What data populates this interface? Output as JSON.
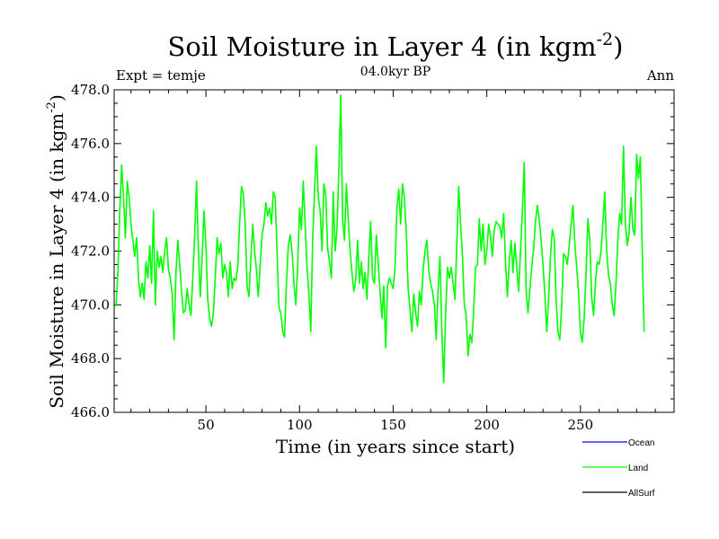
{
  "chart_data": {
    "type": "line",
    "title": "Soil Moisture in Layer 4 (in kgm",
    "title_sup": "-2",
    "title_close": ")",
    "subtitle": "04.0kyr BP",
    "left_label": "Expt = temje",
    "right_label": "Ann",
    "xlabel": "Time (in years since start)",
    "ylabel": "Soil Moisture in Layer 4 (in kgm",
    "ylabel_sup": "-2",
    "ylabel_close": ")",
    "xlim": [
      1,
      300
    ],
    "ylim": [
      466.0,
      478.0
    ],
    "xticks_major": [
      50,
      100,
      150,
      200,
      250
    ],
    "yticks_major": [
      466.0,
      468.0,
      470.0,
      472.0,
      474.0,
      476.0,
      478.0
    ],
    "ytick_labels": [
      "466.0",
      "468.0",
      "470.0",
      "472.0",
      "474.0",
      "476.0",
      "478.0"
    ],
    "legend": [
      {
        "name": "Ocean",
        "color": "#0000ff"
      },
      {
        "name": "Land",
        "color": "#00ff00"
      },
      {
        "name": "AllSurf",
        "color": "#000000"
      }
    ],
    "series": [
      {
        "name": "Land",
        "color": "#00ff00",
        "x_start": 1,
        "x_step": 1,
        "values": [
          469.9,
          470.0,
          471.2,
          473.5,
          475.2,
          474.0,
          472.5,
          474.6,
          474.0,
          473.0,
          472.4,
          471.8,
          472.5,
          471.0,
          470.3,
          470.8,
          470.2,
          471.6,
          471.0,
          472.2,
          470.8,
          473.5,
          470.0,
          472.0,
          471.4,
          471.8,
          471.2,
          472.0,
          472.5,
          471.3,
          471.0,
          470.4,
          468.7,
          471.2,
          472.4,
          471.5,
          470.5,
          469.7,
          469.8,
          470.6,
          470.0,
          469.6,
          471.0,
          472.6,
          474.6,
          472.0,
          470.3,
          471.8,
          473.5,
          472.2,
          470.2,
          469.5,
          469.2,
          469.7,
          471.0,
          472.5,
          471.9,
          472.3,
          471.0,
          471.5,
          471.2,
          470.3,
          471.6,
          470.6,
          471.0,
          470.9,
          471.4,
          473.0,
          474.4,
          474.1,
          473.0,
          470.7,
          470.3,
          471.7,
          473.0,
          472.0,
          471.3,
          470.3,
          471.5,
          472.6,
          473.0,
          473.8,
          473.3,
          473.6,
          473.0,
          474.2,
          474.0,
          472.0,
          469.9,
          469.7,
          469.0,
          468.8,
          470.8,
          472.2,
          472.6,
          472.0,
          470.8,
          470.0,
          471.4,
          473.6,
          472.8,
          474.6,
          473.0,
          471.4,
          470.4,
          469.0,
          472.4,
          474.2,
          475.9,
          474.0,
          473.5,
          472.0,
          474.5,
          474.1,
          472.1,
          471.6,
          471.0,
          474.2,
          472.0,
          472.8,
          475.0,
          477.8,
          473.2,
          472.4,
          474.5,
          473.2,
          472.0,
          471.2,
          470.5,
          470.9,
          472.4,
          470.8,
          471.6,
          470.6,
          471.2,
          470.2,
          471.8,
          473.1,
          471.0,
          470.8,
          472.6,
          471.6,
          470.5,
          469.5,
          470.7,
          468.4,
          470.7,
          471.0,
          470.8,
          470.6,
          471.4,
          473.6,
          474.3,
          473.0,
          474.5,
          474.0,
          472.7,
          470.6,
          469.8,
          469.0,
          470.4,
          469.7,
          469.2,
          470.5,
          470.0,
          471.3,
          472.0,
          472.4,
          471.3,
          470.8,
          470.5,
          470.0,
          468.7,
          470.6,
          471.8,
          469.0,
          467.1,
          469.6,
          471.4,
          471.0,
          471.4,
          470.8,
          470.2,
          472.3,
          474.4,
          473.0,
          471.8,
          470.0,
          469.6,
          468.1,
          468.9,
          468.6,
          469.8,
          471.4,
          471.5,
          473.2,
          472.0,
          473.0,
          471.5,
          472.0,
          473.0,
          472.5,
          471.8,
          472.8,
          473.1,
          473.0,
          472.9,
          472.5,
          473.4,
          471.6,
          470.3,
          471.6,
          472.4,
          471.2,
          472.3,
          471.4,
          470.5,
          472.0,
          473.5,
          475.3,
          470.5,
          469.7,
          470.6,
          471.4,
          472.1,
          473.1,
          473.7,
          473.2,
          472.4,
          471.5,
          470.4,
          469.0,
          470.2,
          471.8,
          472.8,
          472.5,
          470.2,
          469.0,
          468.7,
          470.0,
          471.9,
          471.8,
          471.5,
          472.2,
          473.0,
          473.7,
          472.3,
          471.4,
          470.5,
          469.0,
          468.6,
          469.5,
          471.2,
          473.2,
          472.4,
          470.3,
          469.6,
          470.8,
          471.6,
          471.5,
          472.0,
          473.0,
          474.2,
          472.0,
          471.1,
          470.8,
          470.0,
          469.6,
          470.8,
          472.4,
          473.4,
          473.0,
          475.9,
          473.0,
          472.2,
          472.7,
          474.0,
          472.8,
          472.6,
          475.6,
          474.7,
          475.5,
          472.0,
          469.0
        ]
      },
      {
        "name": "Ocean",
        "color": "#0000ff",
        "values": []
      },
      {
        "name": "AllSurf",
        "color": "#000000",
        "values": []
      }
    ]
  }
}
